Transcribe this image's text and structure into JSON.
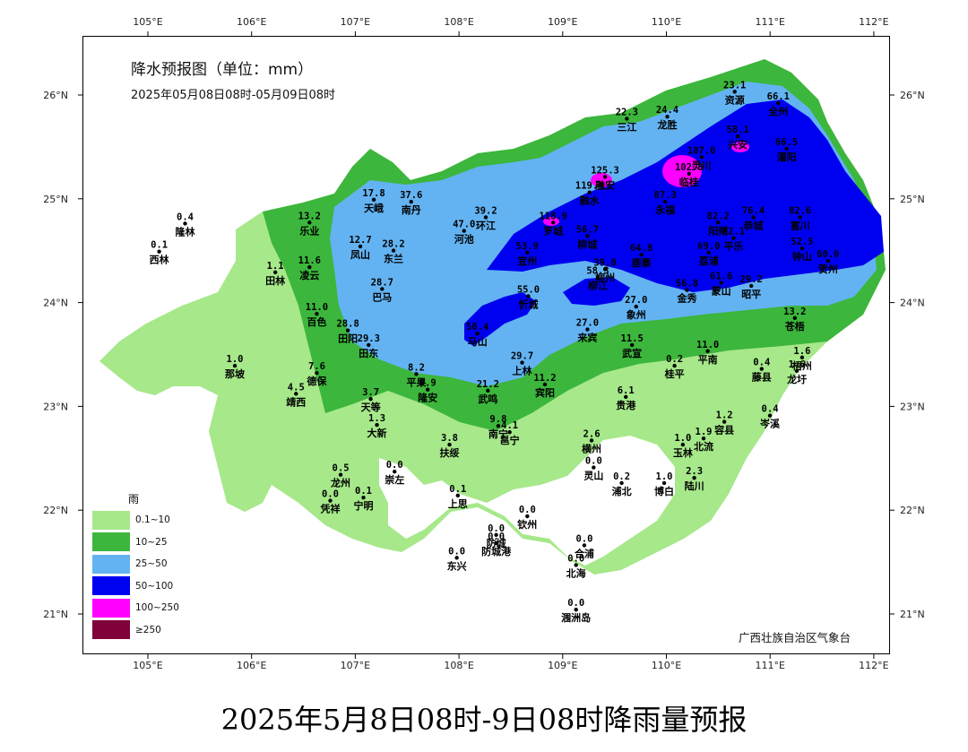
{
  "map": {
    "title": "降水预报图（单位：mm）",
    "subtitle": "2025年05月08日08时-05月09日08时",
    "agency": "广西壮族自治区气象台"
  },
  "caption": "2025年5月8日08时-9日08时降雨量预报",
  "axes": {
    "lon_labels": [
      "105°E",
      "106°E",
      "107°E",
      "108°E",
      "109°E",
      "110°E",
      "111°E",
      "112°E"
    ],
    "lat_labels": [
      "26°N",
      "25°N",
      "24°N",
      "23°N",
      "22°N",
      "21°N"
    ]
  },
  "legend": {
    "title": "雨",
    "items": [
      {
        "label": "0.1~10",
        "color": "#a6e88a"
      },
      {
        "label": "10~25",
        "color": "#3cb63c"
      },
      {
        "label": "25~50",
        "color": "#63b3f2"
      },
      {
        "label": "50~100",
        "color": "#0000f0"
      },
      {
        "label": "100~250",
        "color": "#ff00ff"
      },
      {
        "label": "≥250",
        "color": "#80003a"
      }
    ]
  },
  "stations": [
    {
      "name": "隆林",
      "value": "0.4",
      "lon": 105.35,
      "lat": 24.77
    },
    {
      "name": "西林",
      "value": "0.1",
      "lon": 105.1,
      "lat": 24.5
    },
    {
      "name": "田林",
      "value": "1.1",
      "lon": 106.22,
      "lat": 24.3
    },
    {
      "name": "乐业",
      "value": "13.2",
      "lon": 106.55,
      "lat": 24.78
    },
    {
      "name": "凌云",
      "value": "11.6",
      "lon": 106.55,
      "lat": 24.35
    },
    {
      "name": "天峨",
      "value": "17.8",
      "lon": 107.17,
      "lat": 25.0
    },
    {
      "name": "南丹",
      "value": "37.6",
      "lon": 107.53,
      "lat": 24.98
    },
    {
      "name": "凤山",
      "value": "12.7",
      "lon": 107.04,
      "lat": 24.55
    },
    {
      "name": "东兰",
      "value": "28.2",
      "lon": 107.36,
      "lat": 24.51
    },
    {
      "name": "巴马",
      "value": "28.7",
      "lon": 107.25,
      "lat": 24.14
    },
    {
      "name": "河池",
      "value": "47.0",
      "lon": 108.04,
      "lat": 24.7
    },
    {
      "name": "环江",
      "value": "39.2",
      "lon": 108.25,
      "lat": 24.83
    },
    {
      "name": "百色",
      "value": "11.0",
      "lon": 106.62,
      "lat": 23.9
    },
    {
      "name": "田阳",
      "value": "28.8",
      "lon": 106.92,
      "lat": 23.74
    },
    {
      "name": "田东",
      "value": "29.3",
      "lon": 107.12,
      "lat": 23.6
    },
    {
      "name": "那坡",
      "value": "1.0",
      "lon": 105.83,
      "lat": 23.4
    },
    {
      "name": "德保",
      "value": "7.6",
      "lon": 106.62,
      "lat": 23.33
    },
    {
      "name": "靖西",
      "value": "4.5",
      "lon": 106.42,
      "lat": 23.13
    },
    {
      "name": "天等",
      "value": "3.7",
      "lon": 107.14,
      "lat": 23.08
    },
    {
      "name": "大新",
      "value": "1.3",
      "lon": 107.2,
      "lat": 22.83
    },
    {
      "name": "平果",
      "value": "8.2",
      "lon": 107.58,
      "lat": 23.32
    },
    {
      "name": "隆安",
      "value": "9.9",
      "lon": 107.69,
      "lat": 23.17
    },
    {
      "name": "马山",
      "value": "50.4",
      "lon": 108.17,
      "lat": 23.71
    },
    {
      "name": "忻城",
      "value": "55.0",
      "lon": 108.66,
      "lat": 24.07
    },
    {
      "name": "上林",
      "value": "29.7",
      "lon": 108.6,
      "lat": 23.43
    },
    {
      "name": "宾阳",
      "value": "11.2",
      "lon": 108.82,
      "lat": 23.22
    },
    {
      "name": "武鸣",
      "value": "21.2",
      "lon": 108.27,
      "lat": 23.16
    },
    {
      "name": "南宁",
      "value": "9.8",
      "lon": 108.37,
      "lat": 22.82
    },
    {
      "name": "邕宁",
      "value": "4.1",
      "lon": 108.48,
      "lat": 22.76
    },
    {
      "name": "扶绥",
      "value": "3.8",
      "lon": 107.9,
      "lat": 22.64
    },
    {
      "name": "崇左",
      "value": "0.0",
      "lon": 107.37,
      "lat": 22.38
    },
    {
      "name": "龙州",
      "value": "0.5",
      "lon": 106.85,
      "lat": 22.35
    },
    {
      "name": "宁明",
      "value": "0.1",
      "lon": 107.07,
      "lat": 22.13
    },
    {
      "name": "凭祥",
      "value": "0.0",
      "lon": 106.75,
      "lat": 22.1
    },
    {
      "name": "上思",
      "value": "0.1",
      "lon": 107.98,
      "lat": 22.15
    },
    {
      "name": "钦州",
      "value": "0.0",
      "lon": 108.65,
      "lat": 21.95
    },
    {
      "name": "东兴",
      "value": "0.0",
      "lon": 107.97,
      "lat": 21.55
    },
    {
      "name": "防城",
      "value": "0.0",
      "lon": 108.35,
      "lat": 21.77
    },
    {
      "name": "防城港",
      "value": "0.0",
      "lon": 108.35,
      "lat": 21.69
    },
    {
      "name": "合浦",
      "value": "0.0",
      "lon": 109.2,
      "lat": 21.67
    },
    {
      "name": "北海",
      "value": "0.0",
      "lon": 109.12,
      "lat": 21.48
    },
    {
      "name": "涠洲岛",
      "value": "0.0",
      "lon": 109.12,
      "lat": 21.05
    },
    {
      "name": "宜州",
      "value": "53.9",
      "lon": 108.65,
      "lat": 24.49
    },
    {
      "name": "罗城",
      "value": "118.9",
      "lon": 108.9,
      "lat": 24.78
    },
    {
      "name": "融水",
      "value": "119.4",
      "lon": 109.25,
      "lat": 25.07
    },
    {
      "name": "融安",
      "value": "125.3",
      "lon": 109.4,
      "lat": 25.22
    },
    {
      "name": "三江",
      "value": "22.3",
      "lon": 109.61,
      "lat": 25.78
    },
    {
      "name": "龙胜",
      "value": "24.4",
      "lon": 110.0,
      "lat": 25.8
    },
    {
      "name": "资源",
      "value": "23.1",
      "lon": 110.65,
      "lat": 26.04
    },
    {
      "name": "全州",
      "value": "66.1",
      "lon": 111.07,
      "lat": 25.93
    },
    {
      "name": "兴安",
      "value": "58.1",
      "lon": 110.68,
      "lat": 25.61
    },
    {
      "name": "灌阳",
      "value": "66.5",
      "lon": 111.15,
      "lat": 25.49
    },
    {
      "name": "灵川",
      "value": "107.0",
      "lon": 110.33,
      "lat": 25.41
    },
    {
      "name": "临桂",
      "value": "102.8",
      "lon": 110.21,
      "lat": 25.25
    },
    {
      "name": "永福",
      "value": "87.3",
      "lon": 109.98,
      "lat": 24.98
    },
    {
      "name": "柳城",
      "value": "56.7",
      "lon": 109.23,
      "lat": 24.65
    },
    {
      "name": "鹿寨",
      "value": "64.8",
      "lon": 109.75,
      "lat": 24.47
    },
    {
      "name": "柳州",
      "value": "39.0",
      "lon": 109.4,
      "lat": 24.33
    },
    {
      "name": "柳江",
      "value": "58.3",
      "lon": 109.33,
      "lat": 24.25
    },
    {
      "name": "阳朔",
      "value": "82.2",
      "lon": 110.49,
      "lat": 24.78
    },
    {
      "name": "荔浦",
      "value": "69.0",
      "lon": 110.4,
      "lat": 24.49
    },
    {
      "name": "恭城",
      "value": "76.4",
      "lon": 110.83,
      "lat": 24.83
    },
    {
      "name": "平乐",
      "value": "82.1",
      "lon": 110.64,
      "lat": 24.63
    },
    {
      "name": "蒙山",
      "value": "61.6",
      "lon": 110.52,
      "lat": 24.2
    },
    {
      "name": "金秀",
      "value": "56.8",
      "lon": 110.19,
      "lat": 24.13
    },
    {
      "name": "象州",
      "value": "27.0",
      "lon": 109.7,
      "lat": 23.97
    },
    {
      "name": "来宾",
      "value": "27.0",
      "lon": 109.23,
      "lat": 23.75
    },
    {
      "name": "昭平",
      "value": "29.2",
      "lon": 110.81,
      "lat": 24.17
    },
    {
      "name": "富川",
      "value": "82.6",
      "lon": 111.28,
      "lat": 24.83
    },
    {
      "name": "钟山",
      "value": "52.5",
      "lon": 111.3,
      "lat": 24.53
    },
    {
      "name": "贺州",
      "value": "60.0",
      "lon": 111.55,
      "lat": 24.41
    },
    {
      "name": "苍梧",
      "value": "13.2",
      "lon": 111.23,
      "lat": 23.86
    },
    {
      "name": "武宣",
      "value": "11.5",
      "lon": 109.66,
      "lat": 23.6
    },
    {
      "name": "平南",
      "value": "11.0",
      "lon": 110.39,
      "lat": 23.54
    },
    {
      "name": "桂平",
      "value": "0.2",
      "lon": 110.07,
      "lat": 23.4
    },
    {
      "name": "藤县",
      "value": "0.4",
      "lon": 110.91,
      "lat": 23.37
    },
    {
      "name": "梧州",
      "value": "1.6",
      "lon": 111.3,
      "lat": 23.48
    },
    {
      "name": "龙圩",
      "value": "1.6",
      "lon": 111.25,
      "lat": 23.35
    },
    {
      "name": "贵港",
      "value": "6.1",
      "lon": 109.6,
      "lat": 23.1
    },
    {
      "name": "横州",
      "value": "2.6",
      "lon": 109.27,
      "lat": 22.68
    },
    {
      "name": "岑溪",
      "value": "0.4",
      "lon": 110.99,
      "lat": 22.92
    },
    {
      "name": "容县",
      "value": "1.2",
      "lon": 110.55,
      "lat": 22.86
    },
    {
      "name": "玉林",
      "value": "1.0",
      "lon": 110.15,
      "lat": 22.64
    },
    {
      "name": "北流",
      "value": "1.9",
      "lon": 110.35,
      "lat": 22.7
    },
    {
      "name": "灵山",
      "value": "0.0",
      "lon": 109.29,
      "lat": 22.42
    },
    {
      "name": "浦北",
      "value": "0.2",
      "lon": 109.56,
      "lat": 22.27
    },
    {
      "name": "博白",
      "value": "1.0",
      "lon": 109.97,
      "lat": 22.27
    },
    {
      "name": "陆川",
      "value": "2.3",
      "lon": 110.26,
      "lat": 22.32
    }
  ]
}
